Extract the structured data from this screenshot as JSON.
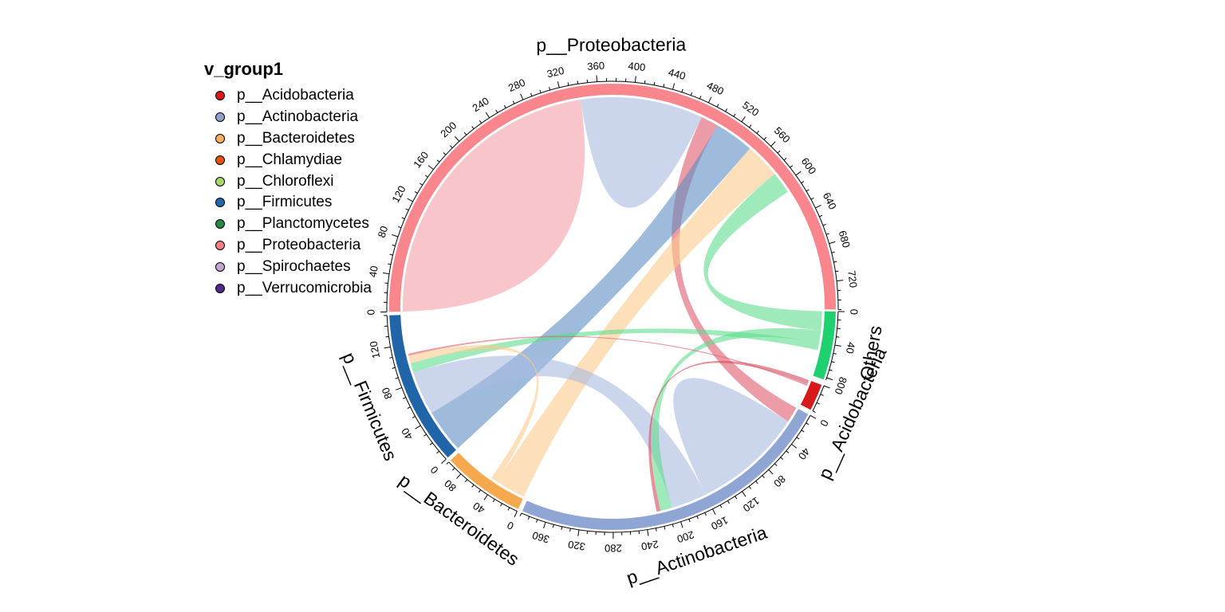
{
  "chart_data": {
    "type": "chord",
    "legend": {
      "title": "v_group1",
      "entries": [
        {
          "label": "p__Acidobacteria",
          "color": "#d7191c"
        },
        {
          "label": "p__Actinobacteria",
          "color": "#8da0cb"
        },
        {
          "label": "p__Bacteroidetes",
          "color": "#fdae61"
        },
        {
          "label": "p__Chlamydiae",
          "color": "#e6550d"
        },
        {
          "label": "p__Chloroflexi",
          "color": "#a6d96a"
        },
        {
          "label": "p__Firmicutes",
          "color": "#2166ac"
        },
        {
          "label": "p__Planctomycetes",
          "color": "#238b45"
        },
        {
          "label": "p__Proteobacteria",
          "color": "#f08080"
        },
        {
          "label": "p__Spirochaetes",
          "color": "#c2a5cf"
        },
        {
          "label": "p__Verrucomicrobia",
          "color": "#542788"
        }
      ]
    },
    "sectors": [
      {
        "name": "p__Proteobacteria",
        "total": 750,
        "color": "#f8868c",
        "ticks": [
          0,
          40,
          80,
          120,
          160,
          200,
          240,
          280,
          320,
          360,
          400,
          440,
          480,
          520,
          560,
          600,
          640,
          680,
          720
        ]
      },
      {
        "name": "Others",
        "total": 83,
        "color": "#1fd16e",
        "ticks": [
          0,
          40,
          80
        ]
      },
      {
        "name": "p__Acidobacteria",
        "total": 30,
        "color": "#d7191c",
        "ticks": [
          0
        ]
      },
      {
        "name": "p__Actinobacteria",
        "total": 390,
        "color": "#8fa5d4",
        "ticks": [
          0,
          40,
          80,
          120,
          160,
          200,
          240,
          280,
          320,
          360
        ]
      },
      {
        "name": "p__Bacteroidetes",
        "total": 100,
        "color": "#f5a84e",
        "ticks": [
          0,
          40,
          80
        ]
      },
      {
        "name": "p__Firmicutes",
        "total": 150,
        "color": "#2065a8",
        "ticks": [
          0,
          40,
          80,
          120
        ]
      }
    ],
    "links": [
      {
        "from": "p__Proteobacteria",
        "to": "p__Proteobacteria",
        "value": 340,
        "color": "#f4a0a6"
      },
      {
        "from": "p__Proteobacteria",
        "to": "p__Proteobacteria",
        "value": 140,
        "color": "#a9b9e0"
      },
      {
        "from": "p__Proteobacteria",
        "to": "p__Actinobacteria",
        "value": 20,
        "color": "#e05a6b"
      },
      {
        "from": "p__Proteobacteria",
        "to": "p__Firmicutes",
        "value": 45,
        "color": "#5f8ec3"
      },
      {
        "from": "p__Proteobacteria",
        "to": "p__Bacteroidetes",
        "value": 40,
        "color": "#fbc98a"
      },
      {
        "from": "p__Proteobacteria",
        "to": "Others",
        "value": 25,
        "color": "#5fdc8e"
      },
      {
        "from": "p__Actinobacteria",
        "to": "p__Actinobacteria",
        "value": 140,
        "color": "#a9b9e0"
      },
      {
        "from": "p__Actinobacteria",
        "to": "p__Firmicutes",
        "value": 45,
        "color": "#a9b9e0"
      },
      {
        "from": "p__Actinobacteria",
        "to": "Others",
        "value": 15,
        "color": "#5fdc8e"
      },
      {
        "from": "p__Actinobacteria",
        "to": "p__Acidobacteria",
        "value": 5,
        "color": "#d44a5c"
      },
      {
        "from": "p__Firmicutes",
        "to": "Others",
        "value": 10,
        "color": "#5fdc8e"
      },
      {
        "from": "p__Firmicutes",
        "to": "p__Bacteroidetes",
        "value": 8,
        "color": "#fbc98a"
      },
      {
        "from": "p__Acidobacteria",
        "to": "p__Firmicutes",
        "value": 2,
        "color": "#e05a6b"
      }
    ]
  }
}
